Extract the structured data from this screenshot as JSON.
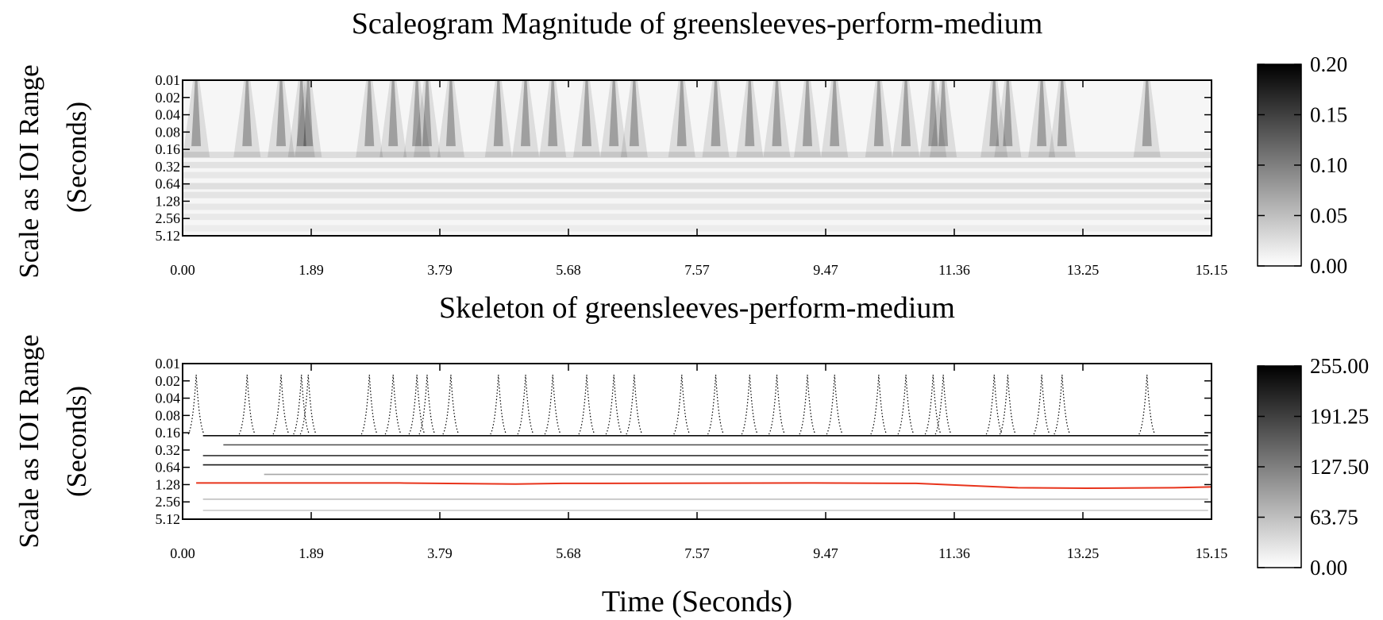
{
  "chart_data": [
    {
      "type": "heatmap",
      "title": "Scaleogram Magnitude of greensleeves-perform-medium",
      "ylabel_lines": [
        "Scale as IOI Range",
        "(Seconds)"
      ],
      "x_ticks": [
        "0.00",
        "1.89",
        "3.79",
        "5.68",
        "7.57",
        "9.47",
        "11.36",
        "13.25",
        "15.15"
      ],
      "y_ticks": [
        "0.01",
        "0.02",
        "0.04",
        "0.08",
        "0.16",
        "0.32",
        "0.64",
        "1.28",
        "2.56",
        "5.12"
      ],
      "xlim": [
        0,
        15.15
      ],
      "ylim": [
        0.01,
        5.12
      ],
      "y_scale": "log2",
      "colorbar": {
        "ticks": [
          "0.20",
          "0.15",
          "0.10",
          "0.05",
          "0.00"
        ],
        "range": [
          0,
          0.2
        ],
        "colormap": "gray-reversed"
      },
      "onsets": [
        0.2,
        0.95,
        1.45,
        1.75,
        1.85,
        2.75,
        3.1,
        3.45,
        3.6,
        3.95,
        4.65,
        5.05,
        5.45,
        5.95,
        6.35,
        6.65,
        7.35,
        7.85,
        8.35,
        8.75,
        9.2,
        9.6,
        10.25,
        10.65,
        11.05,
        11.2,
        11.95,
        12.15,
        12.65,
        12.95,
        14.2
      ],
      "colors": {
        "ink": "#000000",
        "background": "#ffffff"
      }
    },
    {
      "type": "heatmap",
      "title": "Skeleton of greensleeves-perform-medium",
      "ylabel_lines": [
        "Scale as IOI Range",
        "(Seconds)"
      ],
      "xlabel": "Time (Seconds)",
      "x_ticks": [
        "0.00",
        "1.89",
        "3.79",
        "5.68",
        "7.57",
        "9.47",
        "11.36",
        "13.25",
        "15.15"
      ],
      "y_ticks": [
        "0.01",
        "0.02",
        "0.04",
        "0.08",
        "0.16",
        "0.32",
        "0.64",
        "1.28",
        "2.56",
        "5.12"
      ],
      "xlim": [
        0,
        15.15
      ],
      "ylim": [
        0.01,
        5.12
      ],
      "y_scale": "log2",
      "colorbar": {
        "ticks": [
          "255.00",
          "191.25",
          "127.50",
          "63.75",
          "0.00"
        ],
        "range": [
          0,
          255
        ],
        "colormap": "gray-reversed"
      },
      "ridges": [
        {
          "scale": 0.18,
          "x": [
            0.3,
            15.1
          ],
          "shade": 0.95
        },
        {
          "scale": 0.26,
          "x": [
            0.6,
            15.1
          ],
          "shade": 0.7
        },
        {
          "scale": 0.4,
          "x": [
            0.3,
            15.1
          ],
          "shade": 0.8
        },
        {
          "scale": 0.58,
          "x": [
            0.3,
            15.1
          ],
          "shade": 0.9
        },
        {
          "scale": 0.85,
          "x": [
            1.2,
            15.1
          ],
          "shade": 0.35
        },
        {
          "scale": 2.3,
          "x": [
            0.3,
            15.1
          ],
          "shade": 0.25
        },
        {
          "scale": 3.6,
          "x": [
            0.3,
            15.1
          ],
          "shade": 0.2
        }
      ],
      "highlight_path": {
        "color": "#e8341c",
        "points": [
          [
            0.2,
            1.2
          ],
          [
            3.2,
            1.2
          ],
          [
            4.9,
            1.25
          ],
          [
            5.6,
            1.22
          ],
          [
            9.3,
            1.2
          ],
          [
            10.8,
            1.22
          ],
          [
            12.3,
            1.45
          ],
          [
            13.3,
            1.48
          ],
          [
            14.6,
            1.45
          ],
          [
            15.15,
            1.4
          ]
        ]
      },
      "colors": {
        "ink": "#000000",
        "highlight": "#e8341c"
      }
    }
  ]
}
